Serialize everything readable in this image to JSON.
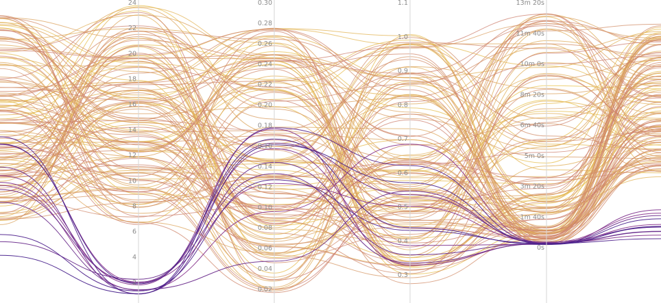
{
  "chart_data": {
    "type": "parallel-coordinates",
    "grid": false,
    "legend": "none",
    "color_scale": {
      "low": "#3b1c8c",
      "mid": "#b5478f",
      "high": "#e8c24a"
    },
    "axes": [
      {
        "name": "",
        "ticks": []
      },
      {
        "name": "",
        "range": [
          1,
          24
        ],
        "ticks": [
          "2",
          "4",
          "6",
          "8",
          "10",
          "12",
          "14",
          "16",
          "18",
          "20",
          "22",
          "24"
        ]
      },
      {
        "name": "",
        "range": [
          0.02,
          0.3
        ],
        "ticks": [
          "0.02",
          "0.04",
          "0.06",
          "0.08",
          "0.10",
          "0.12",
          "0.14",
          "0.16",
          "0.18",
          "0.20",
          "0.22",
          "0.24",
          "0.26",
          "0.28",
          "0.30"
        ]
      },
      {
        "name": "",
        "range": [
          0.2,
          1.1
        ],
        "ticks": [
          "0.3",
          "0.4",
          "0.5",
          "0.6",
          "0.7",
          "0.8",
          "0.9",
          "1.0",
          "1.1"
        ]
      },
      {
        "name": "",
        "range": [
          "0s",
          "13m 20s"
        ],
        "ticks": [
          "0s",
          "1m 40s",
          "3m 20s",
          "5m 0s",
          "6m 40s",
          "8m 20s",
          "10m 0s",
          "11m 40s",
          "13m 20s"
        ]
      },
      {
        "name": "",
        "ticks": []
      }
    ],
    "series_note": "each line is one run; color encodes the final-axis metric"
  }
}
